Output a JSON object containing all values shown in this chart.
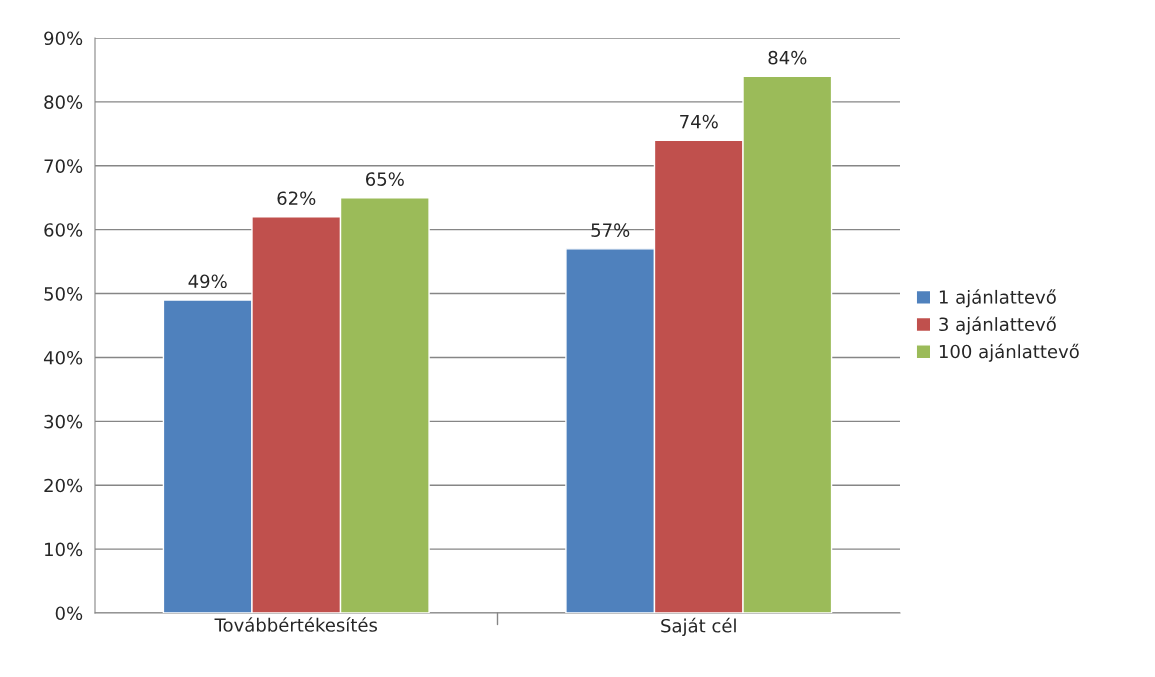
{
  "chart_data": {
    "type": "bar",
    "categories": [
      "Továbbértékesítés",
      "Saját cél"
    ],
    "series": [
      {
        "name": "1 ajánlattevő",
        "color": "#4f81bd",
        "values": [
          49,
          57
        ],
        "value_labels": [
          "49%",
          "57%"
        ]
      },
      {
        "name": "3 ajánlattevő",
        "color": "#c0504d",
        "values": [
          62,
          74
        ],
        "value_labels": [
          "62%",
          "74%"
        ]
      },
      {
        "name": "100 ajánlattevő",
        "color": "#9bbb59",
        "values": [
          65,
          84
        ],
        "value_labels": [
          "65%",
          "84%"
        ]
      }
    ],
    "ylim": [
      0,
      90
    ],
    "yticks": [
      {
        "value": 0,
        "label": "0%"
      },
      {
        "value": 10,
        "label": "10%"
      },
      {
        "value": 20,
        "label": "20%"
      },
      {
        "value": 30,
        "label": "30%"
      },
      {
        "value": 40,
        "label": "40%"
      },
      {
        "value": 50,
        "label": "50%"
      },
      {
        "value": 60,
        "label": "60%"
      },
      {
        "value": 70,
        "label": "70%"
      },
      {
        "value": 80,
        "label": "80%"
      },
      {
        "value": 90,
        "label": "90%"
      }
    ],
    "grid": "y",
    "legend": "right"
  }
}
